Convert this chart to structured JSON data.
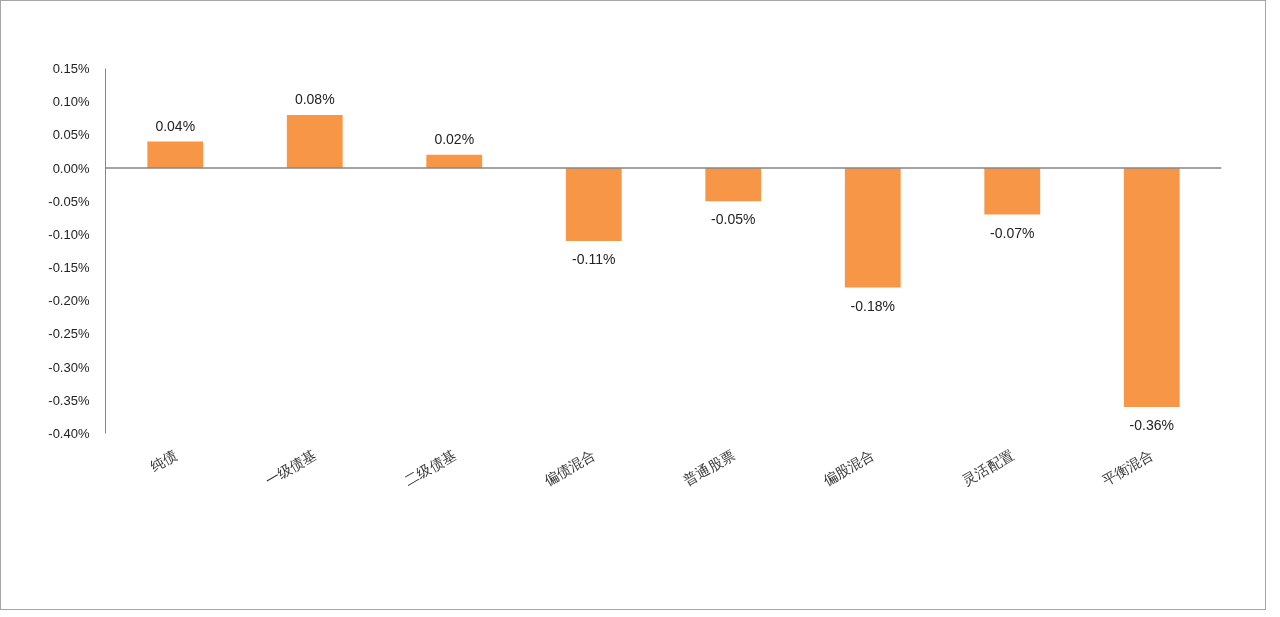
{
  "chart_data": {
    "type": "bar",
    "categories": [
      "纯债",
      "一级债基",
      "二级债基",
      "偏债混合",
      "普通股票",
      "偏股混合",
      "灵活配置",
      "平衡混合"
    ],
    "values": [
      0.04,
      0.08,
      0.02,
      -0.11,
      -0.05,
      -0.18,
      -0.07,
      -0.36
    ],
    "value_labels": [
      "0.04%",
      "0.08%",
      "0.02%",
      "-0.11%",
      "-0.05%",
      "-0.18%",
      "-0.07%",
      "-0.36%"
    ],
    "color": "#f79646",
    "ylim": [
      -0.4,
      0.15
    ],
    "yticks": [
      {
        "value": -0.4,
        "label": "-0.40%"
      },
      {
        "value": -0.35,
        "label": "-0.35%"
      },
      {
        "value": -0.3,
        "label": "-0.30%"
      },
      {
        "value": -0.25,
        "label": "-0.25%"
      },
      {
        "value": -0.2,
        "label": "-0.20%"
      },
      {
        "value": -0.15,
        "label": "-0.15%"
      },
      {
        "value": -0.1,
        "label": "-0.10%"
      },
      {
        "value": -0.05,
        "label": "-0.05%"
      },
      {
        "value": 0,
        "label": "0.00%"
      },
      {
        "value": 0.05,
        "label": "0.05%"
      },
      {
        "value": 0.1,
        "label": "0.10%"
      },
      {
        "value": 0.15,
        "label": "0.15%"
      }
    ],
    "ref_lines": [
      {
        "axis": "y",
        "value": 0,
        "color": "#868686"
      }
    ],
    "grid": false
  }
}
